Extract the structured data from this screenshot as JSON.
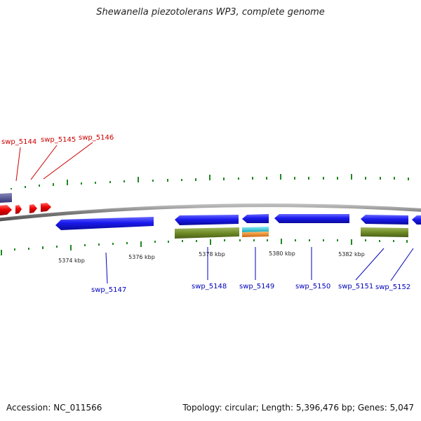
{
  "title": "Shewanella piezotolerans WP3, complete genome",
  "footer": {
    "accession": "Accession: NC_011566",
    "summary": "Topology: circular; Length: 5,396,476 bp; Genes: 5,047"
  },
  "colors": {
    "cds_forward_red": "#ee0000",
    "cds_blue": "#1a1aee",
    "cds_purple": "#555599",
    "feature_olive": "#6f8c26",
    "feature_cyan": "#22c8d8",
    "feature_orange": "#ee8822",
    "gc_tick": "#228822",
    "genome_line": "#8a8a8a",
    "label_red": "#cc0000",
    "label_blue": "#0000bb"
  },
  "kbp_labels": [
    "5374 kbp",
    "5376 kbp",
    "5378 kbp",
    "5380 kbp",
    "5382 kbp"
  ],
  "gene_labels": {
    "top": [
      "swp_5144",
      "swp_5145",
      "swp_5146"
    ],
    "bottom": [
      "swp_5147",
      "swp_5148",
      "swp_5149",
      "swp_5150",
      "swp_5151",
      "swp_5152"
    ]
  }
}
